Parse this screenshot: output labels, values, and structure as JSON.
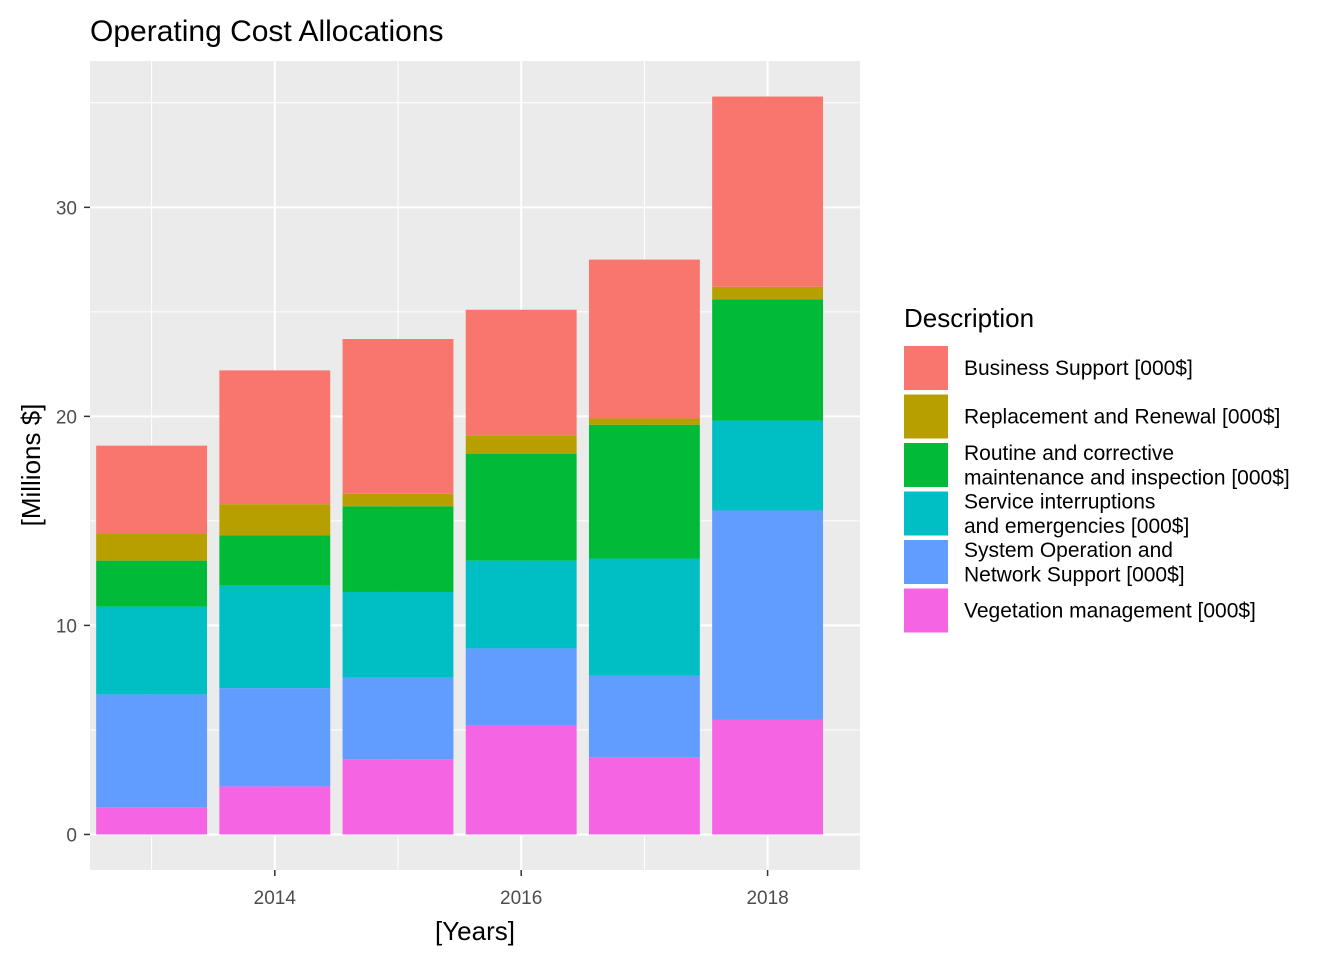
{
  "chart_data": {
    "type": "bar",
    "stacked": true,
    "title": "Operating Cost Allocations",
    "xlabel": "[Years]",
    "ylabel": "[Millions $]",
    "x_ticks": [
      "2014",
      "2016",
      "2018"
    ],
    "y_ticks": [
      "0",
      "10",
      "20",
      "30"
    ],
    "xlim": [
      2012.5,
      2018.75
    ],
    "ylim": [
      -1.7,
      37.0
    ],
    "categories": [
      2013,
      2014,
      2015,
      2016,
      2017,
      2018
    ],
    "legend_title": "Description",
    "legend_position": "right",
    "grid": true,
    "series": [
      {
        "name": "Vegetation management [000$]",
        "name_lines": [
          "Vegetation management [000$]"
        ],
        "color": "#F564E3",
        "values": [
          1.3,
          2.3,
          3.6,
          5.2,
          3.7,
          5.5
        ]
      },
      {
        "name": "System Operation and Network Support [000$]",
        "name_lines": [
          "System Operation and",
          "Network Support [000$]"
        ],
        "color": "#619CFF",
        "values": [
          5.4,
          4.7,
          3.9,
          3.7,
          3.9,
          10.0
        ]
      },
      {
        "name": "Service interruptions and emergencies [000$]",
        "name_lines": [
          "Service interruptions",
          "and emergencies [000$]"
        ],
        "color": "#00BFC4",
        "values": [
          4.2,
          4.9,
          4.1,
          4.2,
          5.6,
          4.3
        ]
      },
      {
        "name": "Routine and corrective maintenance and inspection [000$]",
        "name_lines": [
          "Routine and corrective",
          "maintenance and inspection [000$]"
        ],
        "color": "#00BA38",
        "values": [
          2.2,
          2.4,
          4.1,
          5.1,
          6.4,
          5.8
        ]
      },
      {
        "name": "Replacement and Renewal [000$]",
        "name_lines": [
          "Replacement and Renewal [000$]"
        ],
        "color": "#B79F00",
        "values": [
          1.3,
          1.5,
          0.6,
          0.9,
          0.3,
          0.6
        ]
      },
      {
        "name": "Business Support [000$]",
        "name_lines": [
          "Business Support [000$]"
        ],
        "color": "#F8766D",
        "values": [
          4.2,
          6.4,
          7.4,
          6.0,
          7.6,
          9.1
        ]
      }
    ]
  }
}
